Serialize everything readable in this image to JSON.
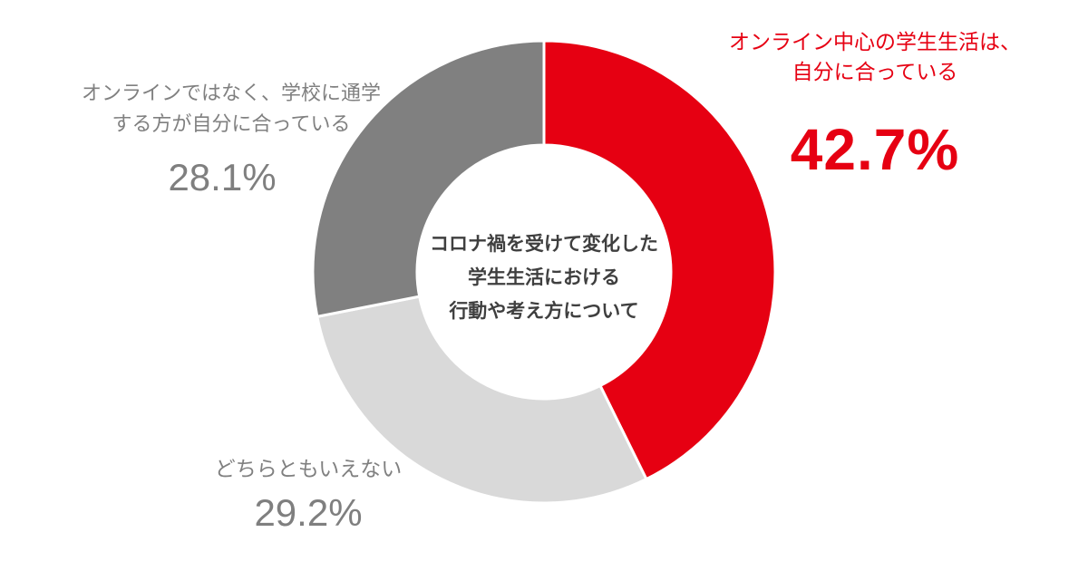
{
  "chart_data": {
    "type": "pie",
    "subtype": "donut",
    "title": "コロナ禍を受けて変化した学生生活における行動や考え方について",
    "center_label_lines": [
      "コロナ禍を受けて変化した",
      "学生生活における",
      "行動や考え方について"
    ],
    "start_angle_deg": 0,
    "direction": "clockwise",
    "inner_radius_ratio": 0.55,
    "slices": [
      {
        "label": "オンライン中心の学生生活は、自分に合っている",
        "label_lines": [
          "オンライン中心の学生生活は、",
          "自分に合っている"
        ],
        "value": 42.7,
        "display": "42.7%",
        "color": "#e60012"
      },
      {
        "label": "どちらともいえない",
        "label_lines": [
          "どちらともいえない"
        ],
        "value": 29.2,
        "display": "29.2%",
        "color": "#d9d9d9"
      },
      {
        "label": "オンラインではなく、学校に通学する方が自分に合っている",
        "label_lines": [
          "オンラインではなく、学校に通学",
          "する方が自分に合っている"
        ],
        "value": 28.1,
        "display": "28.1%",
        "color": "#808080"
      }
    ],
    "colors": {
      "accent_red": "#e60012",
      "dark_gray": "#808080",
      "light_gray": "#d9d9d9",
      "center_text": "#3f3f3f",
      "background": "#ffffff"
    },
    "legend_position": "none",
    "grid": false
  }
}
